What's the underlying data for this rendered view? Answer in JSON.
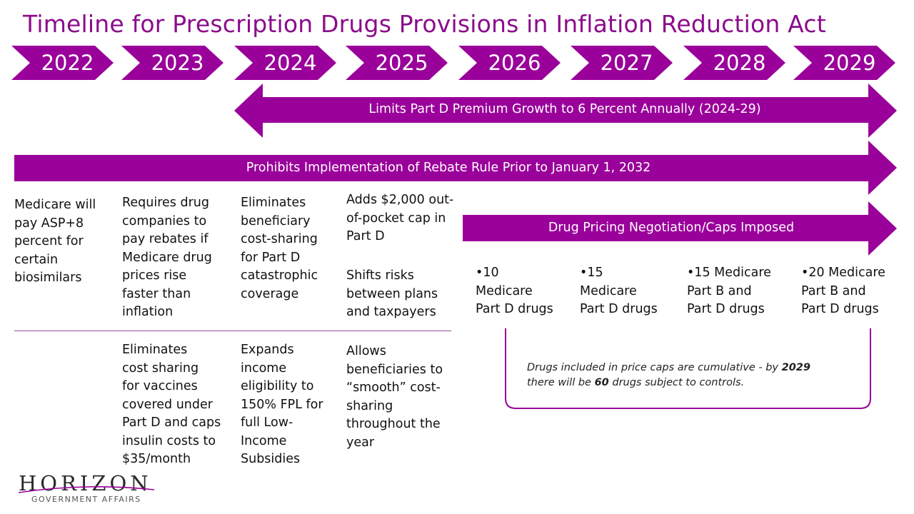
{
  "title": "Timeline for Prescription Drugs Provisions in Inflation Reduction Act",
  "years": [
    "2022",
    "2023",
    "2024",
    "2025",
    "2026",
    "2027",
    "2028",
    "2029"
  ],
  "arrows": {
    "premium": "Limits Part D Premium Growth to 6 Percent Annually (2024-29)",
    "rebate": "Prohibits Implementation of Rebate Rule Prior to January 1, 2032",
    "negotiation": "Drug Pricing Negotiation/Caps Imposed"
  },
  "row1": {
    "c2022": "Medicare will\npay ASP+8\npercent for\ncertain\nbiosimilars",
    "c2023": "Requires drug\ncompanies  to\npay rebates if\nMedicare drug\nprices rise\nfaster  than\ninflation",
    "c2024": "Eliminates\nbeneficiary\ncost-sharing\nfor Part D\ncatastrophic\ncoverage",
    "c2025a": "Adds $2,000 out-\nof-pocket cap in\nPart D",
    "c2025b": "Shifts  risks\nbetween plans\nand taxpayers"
  },
  "row2": {
    "c2023": "Eliminates\ncost sharing\nfor vaccines\ncovered under\nPart D and caps\ninsulin costs to\n$35/month",
    "c2024": "Expands\nincome\neligibility to\n150% FPL for\nfull Low-\nIncome\nSubsidies",
    "c2025": "Allows\nbeneficiaries to\n“smooth”  cost-\nsharing\nthroughout the\nyear"
  },
  "negotiation_counts": {
    "c2026": "•10\nMedicare\nPart D drugs",
    "c2027": "•15\nMedicare\nPart D drugs",
    "c2028": "•15 Medicare\nPart B and\nPart D drugs",
    "c2029": "•20 Medicare\nPart B and\nPart D drugs"
  },
  "note": {
    "part1": "Drugs included in price caps are cumulative - by ",
    "year": "2029",
    "part2": "there will be ",
    "count": "60",
    "part3": " drugs subject to controls."
  },
  "logo": {
    "name": "HORIZON",
    "tagline": "GOVERNMENT AFFAIRS"
  },
  "colors": {
    "accent": "#9a009a",
    "title": "#8b0c8b"
  }
}
